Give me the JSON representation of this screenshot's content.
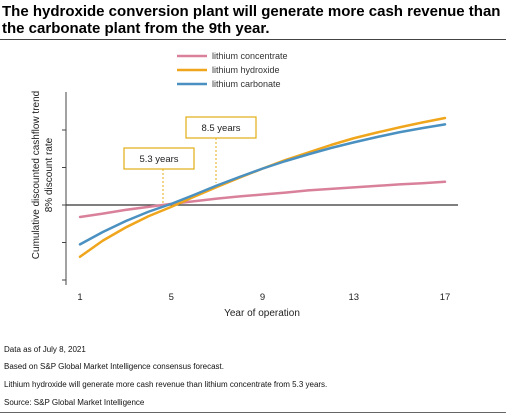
{
  "title": "The hydroxide conversion plant will generate more cash revenue than the carbonate plant from the 9th year.",
  "notes": {
    "date": "Data as of July 8, 2021",
    "basis": "Based on S&P Global Market Intelligence consensus forecast.",
    "remark": "Lithium hydroxide will generate more cash revenue than lithium concentrate from 5.3 years.",
    "source": "Source: S&P Global Market Intelligence"
  },
  "chart_data": {
    "type": "line",
    "xlabel": "Year of operation",
    "ylabel": "Cumulative discounted cashflow trend",
    "ylabel2": "8% discount rate",
    "xticks": [
      1,
      5,
      9,
      13,
      17
    ],
    "xlim": [
      1,
      17
    ],
    "ylim": [
      -2.1,
      2.9
    ],
    "legend_position": "top-center",
    "series": [
      {
        "name": "lithium concentrate",
        "color": "#d9819b",
        "x": [
          1,
          2,
          3,
          4,
          5,
          6,
          7,
          8,
          9,
          10,
          11,
          12,
          13,
          14,
          15,
          16,
          17
        ],
        "y": [
          -0.32,
          -0.23,
          -0.13,
          -0.05,
          0.03,
          0.1,
          0.17,
          0.23,
          0.28,
          0.33,
          0.39,
          0.43,
          0.47,
          0.51,
          0.55,
          0.58,
          0.62
        ]
      },
      {
        "name": "lithium hydroxide",
        "color": "#f0a61c",
        "x": [
          1,
          2,
          3,
          4,
          5,
          6,
          7,
          8,
          9,
          10,
          11,
          12,
          13,
          14,
          15,
          16,
          17
        ],
        "y": [
          -1.38,
          -0.95,
          -0.6,
          -0.3,
          -0.05,
          0.22,
          0.48,
          0.73,
          0.97,
          1.2,
          1.4,
          1.6,
          1.78,
          1.93,
          2.07,
          2.2,
          2.32
        ]
      },
      {
        "name": "lithium carbonate",
        "color": "#4a90c0",
        "x": [
          1,
          2,
          3,
          4,
          5,
          6,
          7,
          8,
          9,
          10,
          11,
          12,
          13,
          14,
          15,
          16,
          17
        ],
        "y": [
          -1.05,
          -0.72,
          -0.43,
          -0.18,
          0.03,
          0.27,
          0.52,
          0.75,
          0.97,
          1.17,
          1.35,
          1.52,
          1.67,
          1.81,
          1.94,
          2.05,
          2.15
        ]
      }
    ],
    "annotations": [
      {
        "text": "5.3 years",
        "x": 5.3
      },
      {
        "text": "8.5 years",
        "x": 8.5
      }
    ]
  }
}
